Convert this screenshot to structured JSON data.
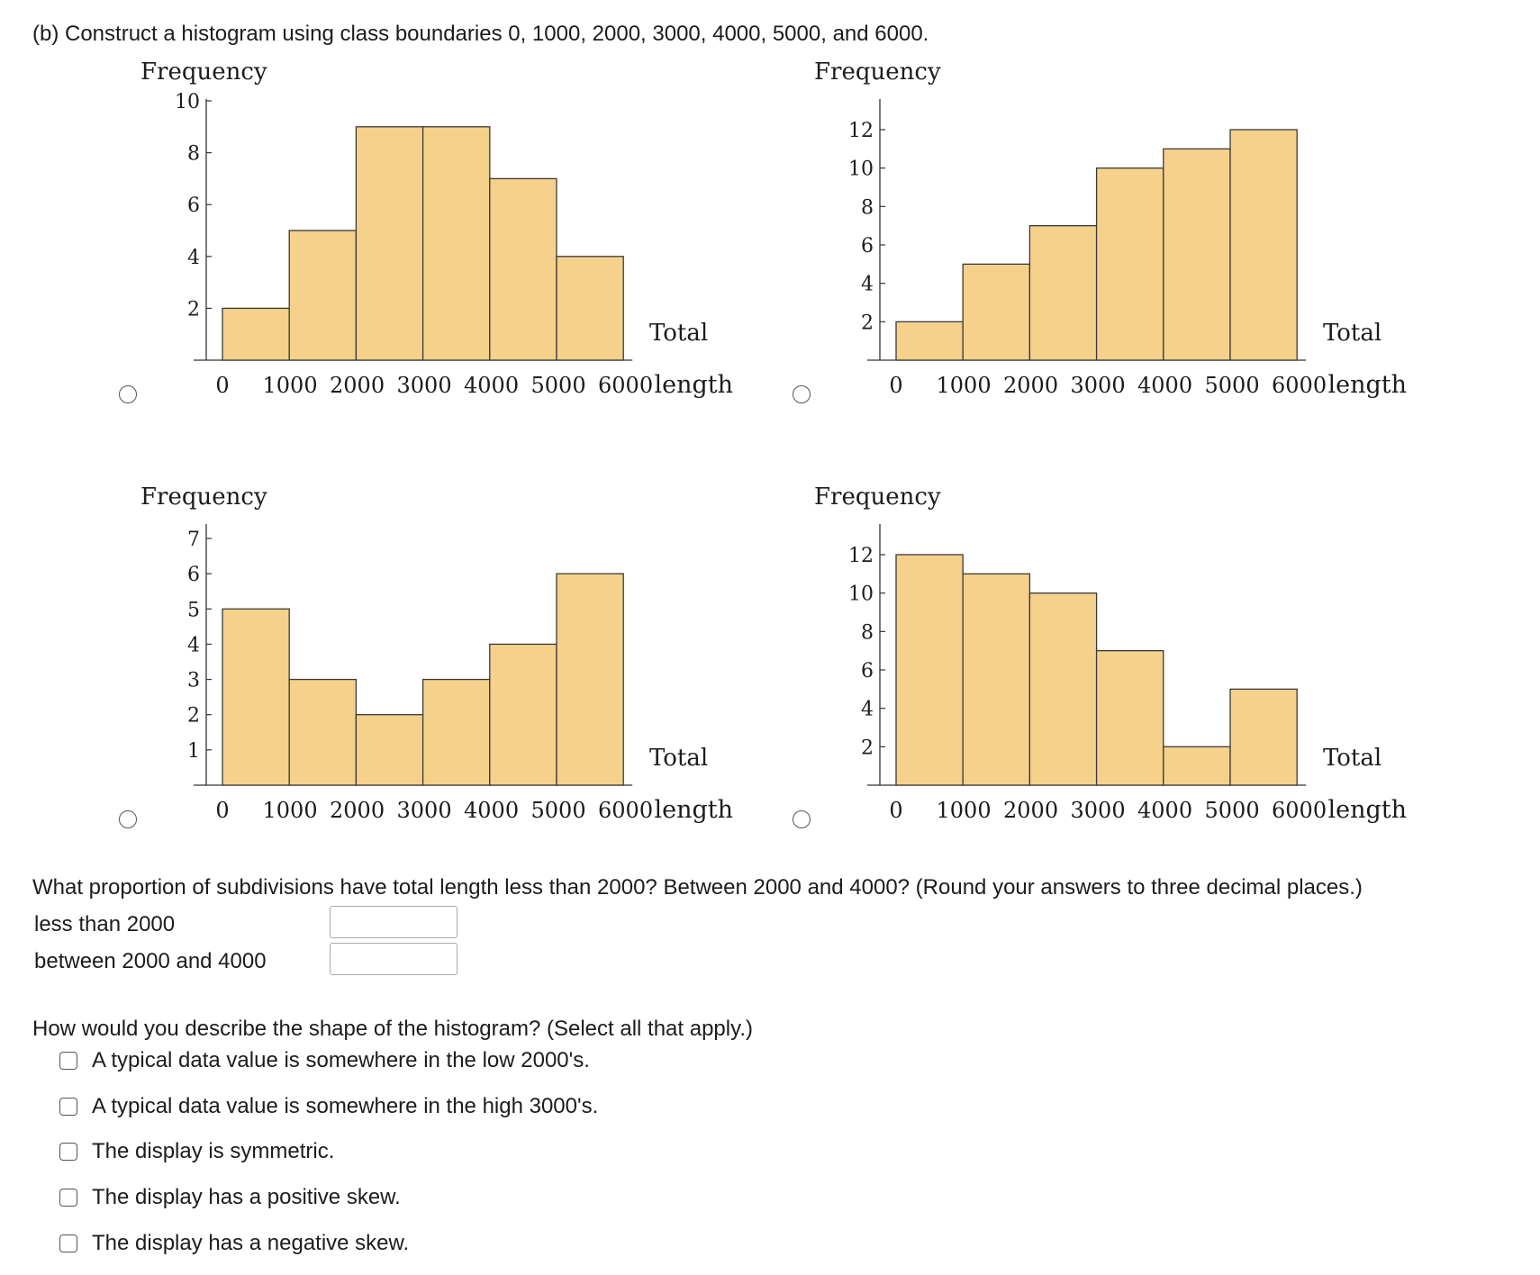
{
  "part_b": {
    "prompt": "(b) Construct a histogram using class boundaries 0, 1000, 2000, 3000, 4000, 5000, and 6000."
  },
  "chart_data": [
    {
      "type": "bar",
      "ylabel": "Frequency",
      "xlabel": "Total length",
      "categories": [
        "0–1000",
        "1000–2000",
        "2000–3000",
        "3000–4000",
        "4000–5000",
        "5000–6000"
      ],
      "x_ticks": [
        "0",
        "1000",
        "2000",
        "3000",
        "4000",
        "5000",
        "6000"
      ],
      "values": [
        2,
        5,
        9,
        9,
        7,
        4
      ],
      "y_ticks": [
        "2",
        "4",
        "6",
        "8",
        "10"
      ],
      "ylim": [
        0,
        10
      ],
      "bar_color": "#f5d18c"
    },
    {
      "type": "bar",
      "ylabel": "Frequency",
      "xlabel": "Total length",
      "categories": [
        "0–1000",
        "1000–2000",
        "2000–3000",
        "3000–4000",
        "4000–5000",
        "5000–6000"
      ],
      "x_ticks": [
        "0",
        "1000",
        "2000",
        "3000",
        "4000",
        "5000",
        "6000"
      ],
      "values": [
        2,
        5,
        7,
        10,
        11,
        12
      ],
      "y_ticks": [
        "2",
        "4",
        "6",
        "8",
        "10",
        "12"
      ],
      "ylim": [
        0,
        12
      ],
      "bar_color": "#f5d18c"
    },
    {
      "type": "bar",
      "ylabel": "Frequency",
      "xlabel": "Total length",
      "categories": [
        "0–1000",
        "1000–2000",
        "2000–3000",
        "3000–4000",
        "4000–5000",
        "5000–6000"
      ],
      "x_ticks": [
        "0",
        "1000",
        "2000",
        "3000",
        "4000",
        "5000",
        "6000"
      ],
      "values": [
        5,
        3,
        2,
        3,
        4,
        6
      ],
      "y_ticks": [
        "1",
        "2",
        "3",
        "4",
        "5",
        "6",
        "7"
      ],
      "ylim": [
        0,
        7
      ],
      "bar_color": "#f5d18c"
    },
    {
      "type": "bar",
      "ylabel": "Frequency",
      "xlabel": "Total length",
      "categories": [
        "0–1000",
        "1000–2000",
        "2000–3000",
        "3000–4000",
        "4000–5000",
        "5000–6000"
      ],
      "x_ticks": [
        "0",
        "1000",
        "2000",
        "3000",
        "4000",
        "5000",
        "6000"
      ],
      "values": [
        12,
        11,
        10,
        7,
        2,
        5
      ],
      "y_ticks": [
        "2",
        "4",
        "6",
        "8",
        "10",
        "12"
      ],
      "ylim": [
        0,
        12
      ],
      "bar_color": "#f5d18c"
    }
  ],
  "axis_text": {
    "ylabel": "Frequency",
    "xlabel_top": "Total",
    "xlabel_bottom": "length"
  },
  "proportion_question": {
    "prompt": "What proportion of subdivisions have total length less than 2000? Between 2000 and 4000? (Round your answers to three decimal places.)",
    "fields": [
      {
        "label": "less than 2000",
        "value": ""
      },
      {
        "label": "between 2000 and 4000",
        "value": ""
      }
    ]
  },
  "shape_question": {
    "prompt": "How would you describe the shape of the histogram? (Select all that apply.)",
    "options": [
      "A typical data value is somewhere in the low 2000's.",
      "A typical data value is somewhere in the high 3000's.",
      "The display is symmetric.",
      "The display has a positive skew.",
      "The display has a negative skew."
    ]
  }
}
